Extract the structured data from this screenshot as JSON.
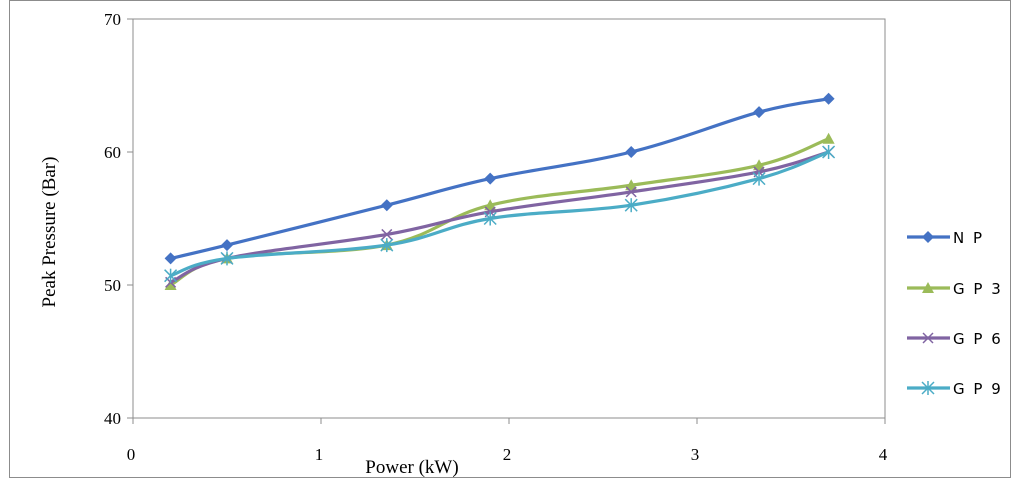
{
  "chart_data": {
    "type": "line",
    "title": "",
    "xlabel": "Power (kW)",
    "ylabel": "Peak Pressure (Bar)",
    "xlim": [
      0,
      4
    ],
    "ylim": [
      40,
      70
    ],
    "x_ticks": [
      "0",
      "1",
      "2",
      "3",
      "4"
    ],
    "y_ticks": [
      "40",
      "50",
      "60",
      "70"
    ],
    "legend_position": "right",
    "grid": false,
    "series": [
      {
        "name": "N P",
        "color": "#4472c4",
        "marker": "diamond",
        "x": [
          0.2,
          0.5,
          1.35,
          1.9,
          2.65,
          3.33,
          3.7
        ],
        "y": [
          52,
          53,
          56,
          58,
          60,
          63,
          64
        ]
      },
      {
        "name": "G P 3",
        "color": "#9bbb59",
        "marker": "triangle",
        "x": [
          0.2,
          0.5,
          1.35,
          1.9,
          2.65,
          3.33,
          3.7
        ],
        "y": [
          50,
          52,
          53,
          56,
          57.5,
          59,
          61
        ]
      },
      {
        "name": "G P 6",
        "color": "#8064a2",
        "marker": "x",
        "x": [
          0.2,
          0.5,
          1.35,
          1.9,
          2.65,
          3.33,
          3.7
        ],
        "y": [
          50.2,
          52,
          53.8,
          55.5,
          57,
          58.5,
          60
        ]
      },
      {
        "name": "G P 9",
        "color": "#4bacc6",
        "marker": "star",
        "x": [
          0.2,
          0.5,
          1.35,
          1.9,
          2.65,
          3.33,
          3.7
        ],
        "y": [
          50.7,
          52,
          53,
          55,
          56,
          58,
          60
        ]
      }
    ]
  }
}
